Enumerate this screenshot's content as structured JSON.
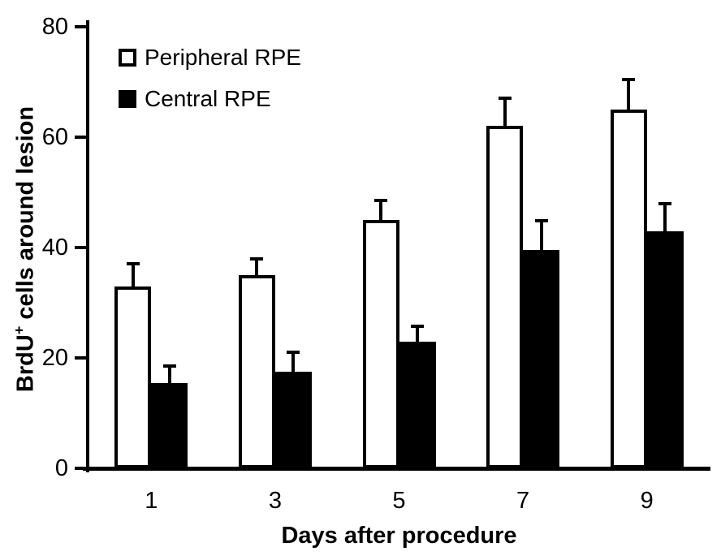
{
  "figure": {
    "background": "#ffffff",
    "accent": "#000000"
  },
  "chart_data": {
    "type": "bar",
    "title": "",
    "categories": [
      "1",
      "3",
      "5",
      "7",
      "9"
    ],
    "series": [
      {
        "name": "Peripheral RPE",
        "fill": "#ffffff",
        "values": [
          33,
          35,
          45,
          62,
          65
        ],
        "errors": [
          4,
          3,
          3.5,
          5,
          5.5
        ]
      },
      {
        "name": "Central RPE",
        "fill": "#000000",
        "values": [
          15.5,
          17.5,
          23,
          39.5,
          43
        ],
        "errors": [
          3,
          3.5,
          2.8,
          5.3,
          5
        ]
      }
    ],
    "xlabel": "Days after procedure",
    "ylabel": "BrdU+ cells around lesion",
    "ylabel_parts": {
      "prefix": "BrdU",
      "sup": "+",
      "suffix": " cells around lesion"
    },
    "ylim": [
      0,
      80
    ],
    "yticks": [
      0,
      20,
      40,
      60,
      80
    ],
    "grid": false,
    "legend_position": "top-left-inside",
    "error_bars": "upper-only",
    "bar_border_color": "#000000"
  }
}
